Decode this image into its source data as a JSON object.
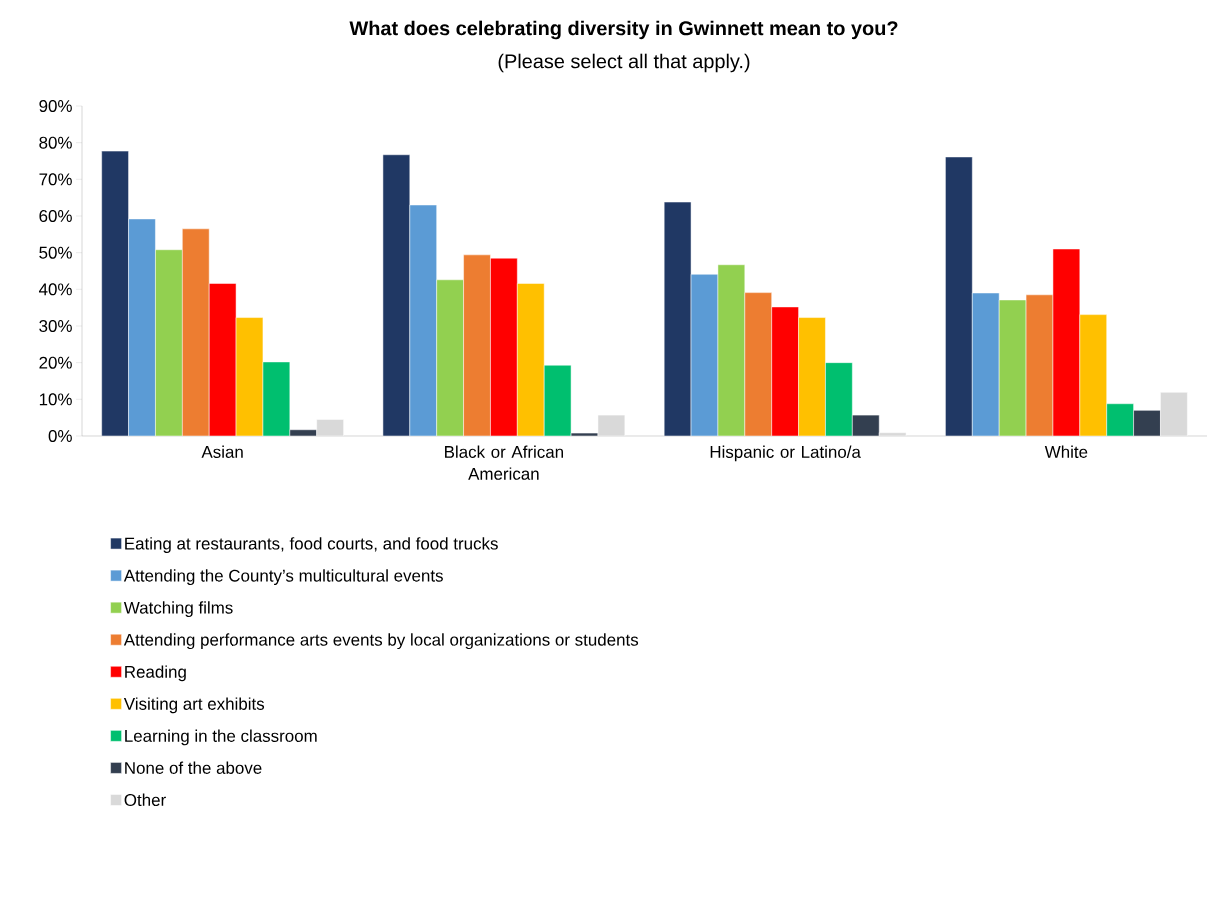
{
  "chart_data": {
    "type": "bar",
    "title": "What does celebrating diversity in Gwinnett mean to you?",
    "subtitle": "(Please select all that apply.)",
    "categories": [
      "Asian",
      "Black or African American",
      "Hispanic or Latino/a",
      "White"
    ],
    "series": [
      {
        "name": "Eating at restaurants, food courts, and food trucks",
        "color": "#203864",
        "values": [
          77.7,
          76.7,
          63.8,
          76.1
        ]
      },
      {
        "name": "Attending the County’s multicultural events",
        "color": "#5b9bd5",
        "values": [
          59.2,
          63.0,
          44.1,
          39.0
        ]
      },
      {
        "name": "Watching films",
        "color": "#92d050",
        "values": [
          50.8,
          42.6,
          46.7,
          37.1
        ]
      },
      {
        "name": "Attending performance arts events by local organizations or students",
        "color": "#ed7d31",
        "values": [
          56.5,
          49.4,
          39.1,
          38.5
        ]
      },
      {
        "name": "Reading",
        "color": "#ff0000",
        "values": [
          41.6,
          48.5,
          35.2,
          51.0
        ]
      },
      {
        "name": "Visiting art exhibits",
        "color": "#ffc000",
        "values": [
          32.3,
          41.6,
          32.3,
          33.1
        ]
      },
      {
        "name": "Learning in the classroom",
        "color": "#00bf6f",
        "values": [
          20.2,
          19.3,
          20.0,
          8.8
        ]
      },
      {
        "name": "None of the above",
        "color": "#333f50",
        "values": [
          1.7,
          0.8,
          5.7,
          7.0
        ]
      },
      {
        "name": "Other",
        "color": "#d9d9d9",
        "values": [
          4.5,
          5.7,
          0.9,
          11.9
        ]
      }
    ],
    "ylim": [
      0,
      90
    ],
    "yticks": [
      {
        "value": 0,
        "label": "0%"
      },
      {
        "value": 10,
        "label": "10%"
      },
      {
        "value": 20,
        "label": "20%"
      },
      {
        "value": 30,
        "label": "30%"
      },
      {
        "value": 40,
        "label": "40%"
      },
      {
        "value": 50,
        "label": "50%"
      },
      {
        "value": 60,
        "label": "60%"
      },
      {
        "value": 70,
        "label": "70%"
      },
      {
        "value": 80,
        "label": "80%"
      },
      {
        "value": 90,
        "label": "90%"
      }
    ],
    "grid": false,
    "legend": "bottom"
  }
}
